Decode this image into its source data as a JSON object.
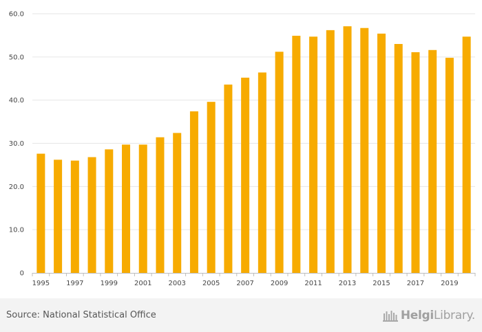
{
  "chart_data": {
    "type": "bar",
    "title": "",
    "xlabel": "",
    "ylabel": "",
    "categories": [
      "1995",
      "1996",
      "1997",
      "1998",
      "1999",
      "2000",
      "2001",
      "2002",
      "2003",
      "2004",
      "2005",
      "2006",
      "2007",
      "2008",
      "2009",
      "2010",
      "2011",
      "2012",
      "2013",
      "2014",
      "2015",
      "2016",
      "2017",
      "2018",
      "2019",
      "2020"
    ],
    "x_tick_labels": [
      "1995",
      "1997",
      "1999",
      "2001",
      "2003",
      "2005",
      "2007",
      "2009",
      "2011",
      "2013",
      "2015",
      "2017",
      "2019"
    ],
    "values": [
      27.6,
      26.2,
      26.0,
      26.8,
      28.6,
      29.7,
      29.7,
      31.4,
      32.4,
      37.4,
      39.6,
      43.6,
      45.2,
      46.4,
      51.2,
      54.9,
      54.7,
      56.2,
      57.1,
      56.7,
      55.4,
      53.0,
      51.1,
      51.6,
      49.8,
      54.7
    ],
    "ylim": [
      0,
      60
    ],
    "y_ticks": [
      0,
      10,
      20,
      30,
      40,
      50,
      60
    ],
    "y_tick_labels": [
      "0",
      "10.0",
      "20.0",
      "30.0",
      "40.0",
      "50.0",
      "60.0"
    ],
    "grid": true,
    "legend": "none",
    "bar_color": "#f7ab00"
  },
  "footer": {
    "source": "Source: National Statistical Office",
    "logo_text_bold": "Helgi",
    "logo_text_regular": "Library."
  },
  "colors": {
    "bar": "#f7ab00",
    "grid": "#e6e6e6",
    "axis": "#bdbdbd",
    "footer_bg": "#f3f3f3"
  }
}
